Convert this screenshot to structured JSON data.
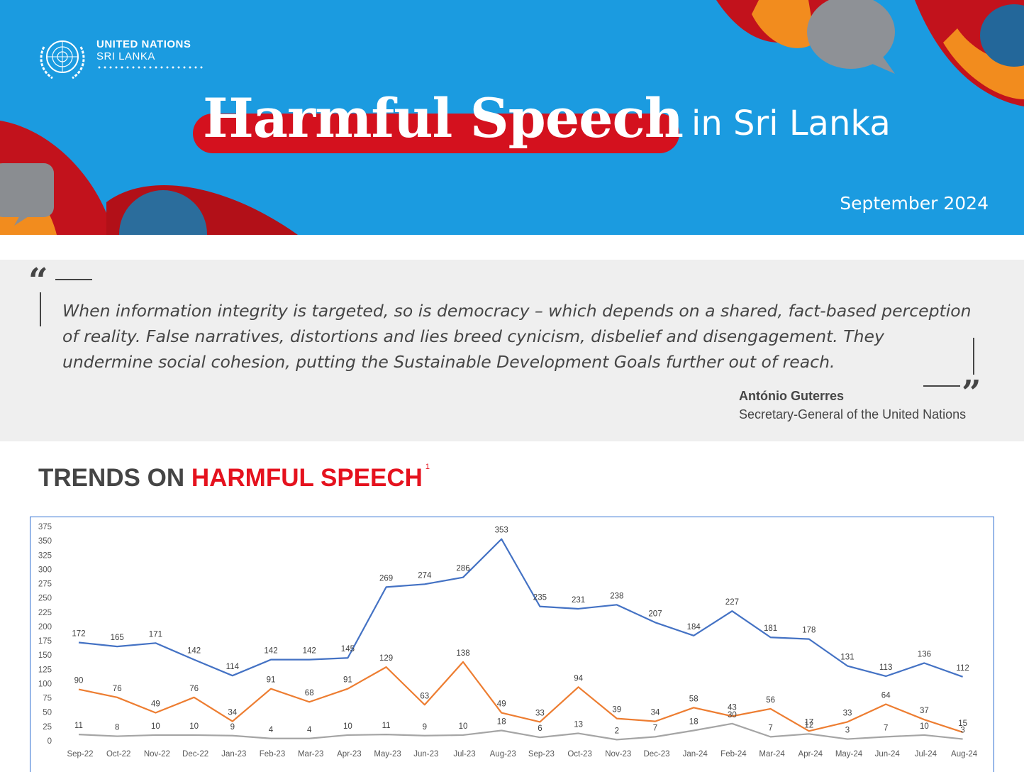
{
  "header": {
    "org_line1": "UNITED NATIONS",
    "org_line2": "SRI LANKA",
    "title_main": "Harmful Speech",
    "title_sub": "in Sri Lanka",
    "date": "September 2024",
    "colors": {
      "banner": "#1b9be0",
      "title_pill": "#d4111e"
    }
  },
  "quote": {
    "text": "When information integrity is targeted, so is democracy – which depends on a shared, fact-based perception of reality. False narratives, distortions and lies breed cynicism, disbelief and disengagement. They undermine social cohesion, putting the Sustainable Development Goals further out of reach.",
    "author": "António Guterres",
    "role": "Secretary-General of the United Nations"
  },
  "section": {
    "title_prefix": "TRENDS ON ",
    "title_accent": "HARMFUL SPEECH",
    "footnote": "1"
  },
  "chart_data": {
    "type": "line",
    "categories": [
      "Sep-22",
      "Oct-22",
      "Nov-22",
      "Dec-22",
      "Jan-23",
      "Feb-23",
      "Mar-23",
      "Apr-23",
      "May-23",
      "Jun-23",
      "Jul-23",
      "Aug-23",
      "Sep-23",
      "Oct-23",
      "Nov-23",
      "Dec-23",
      "Jan-24",
      "Feb-24",
      "Mar-24",
      "Apr-24",
      "May-24",
      "Jun-24",
      "Jul-24",
      "Aug-24"
    ],
    "ylim": [
      0,
      375
    ],
    "yticks": [
      0,
      25,
      50,
      75,
      100,
      125,
      150,
      175,
      200,
      225,
      250,
      275,
      300,
      325,
      350,
      375
    ],
    "grid": false,
    "series": [
      {
        "color": "#4472c4",
        "values": [
          172,
          165,
          171,
          142,
          114,
          142,
          142,
          145,
          269,
          274,
          286,
          353,
          235,
          231,
          238,
          207,
          184,
          227,
          181,
          178,
          131,
          113,
          136,
          112
        ]
      },
      {
        "color": "#ed7d31",
        "values": [
          90,
          76,
          49,
          76,
          34,
          91,
          68,
          91,
          129,
          63,
          138,
          49,
          33,
          94,
          39,
          34,
          58,
          43,
          56,
          17,
          33,
          64,
          37,
          15
        ]
      },
      {
        "color": "#a5a5a5",
        "values": [
          11,
          8,
          10,
          10,
          9,
          4,
          4,
          10,
          11,
          9,
          10,
          18,
          6,
          13,
          2,
          7,
          18,
          30,
          7,
          12,
          3,
          7,
          10,
          3
        ]
      }
    ]
  }
}
